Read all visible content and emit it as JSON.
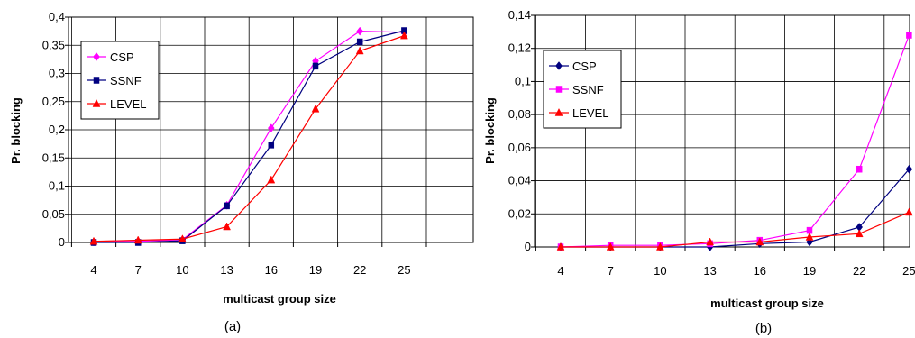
{
  "chart_data": [
    {
      "type": "line",
      "caption": "(a)",
      "xlabel": "multicast group size",
      "ylabel": "Pr. blocking",
      "categories": [
        "4",
        "7",
        "10",
        "13",
        "16",
        "19",
        "22",
        "25"
      ],
      "ylim": [
        0,
        0.4
      ],
      "yticks": [
        "0",
        "0,05",
        "0,1",
        "0,15",
        "0,2",
        "0,25",
        "0,3",
        "0,35",
        "0,4"
      ],
      "grid": true,
      "legend": "left",
      "series": [
        {
          "name": "CSP",
          "color": "#ff00ff",
          "marker": "diamond",
          "values": [
            0.001,
            0.002,
            0.005,
            0.066,
            0.203,
            0.322,
            0.375,
            0.373
          ]
        },
        {
          "name": "SSNF",
          "color": "#000080",
          "marker": "square",
          "values": [
            0.0,
            0.0,
            0.003,
            0.065,
            0.173,
            0.313,
            0.356,
            0.376
          ]
        },
        {
          "name": "LEVEL",
          "color": "#ff0000",
          "marker": "triangle",
          "values": [
            0.002,
            0.004,
            0.006,
            0.028,
            0.111,
            0.237,
            0.34,
            0.367
          ]
        }
      ]
    },
    {
      "type": "line",
      "caption": "(b)",
      "xlabel": "multicast group size",
      "ylabel": "Pr. blocking",
      "categories": [
        "4",
        "7",
        "10",
        "13",
        "16",
        "19",
        "22",
        "25"
      ],
      "ylim": [
        0,
        0.14
      ],
      "yticks": [
        "0",
        "0,02",
        "0,04",
        "0,06",
        "0,08",
        "0,1",
        "0,12",
        "0,14"
      ],
      "grid": true,
      "legend": "left",
      "series": [
        {
          "name": "CSP",
          "color": "#000080",
          "marker": "diamond",
          "values": [
            0.0,
            0.0,
            0.0,
            0.0,
            0.002,
            0.003,
            0.012,
            0.047
          ]
        },
        {
          "name": "SSNF",
          "color": "#ff00ff",
          "marker": "square",
          "values": [
            0.0,
            0.001,
            0.001,
            0.002,
            0.004,
            0.01,
            0.047,
            0.128
          ]
        },
        {
          "name": "LEVEL",
          "color": "#ff0000",
          "marker": "triangle",
          "values": [
            0.0,
            0.0,
            0.0,
            0.003,
            0.003,
            0.006,
            0.008,
            0.021
          ]
        }
      ]
    }
  ]
}
